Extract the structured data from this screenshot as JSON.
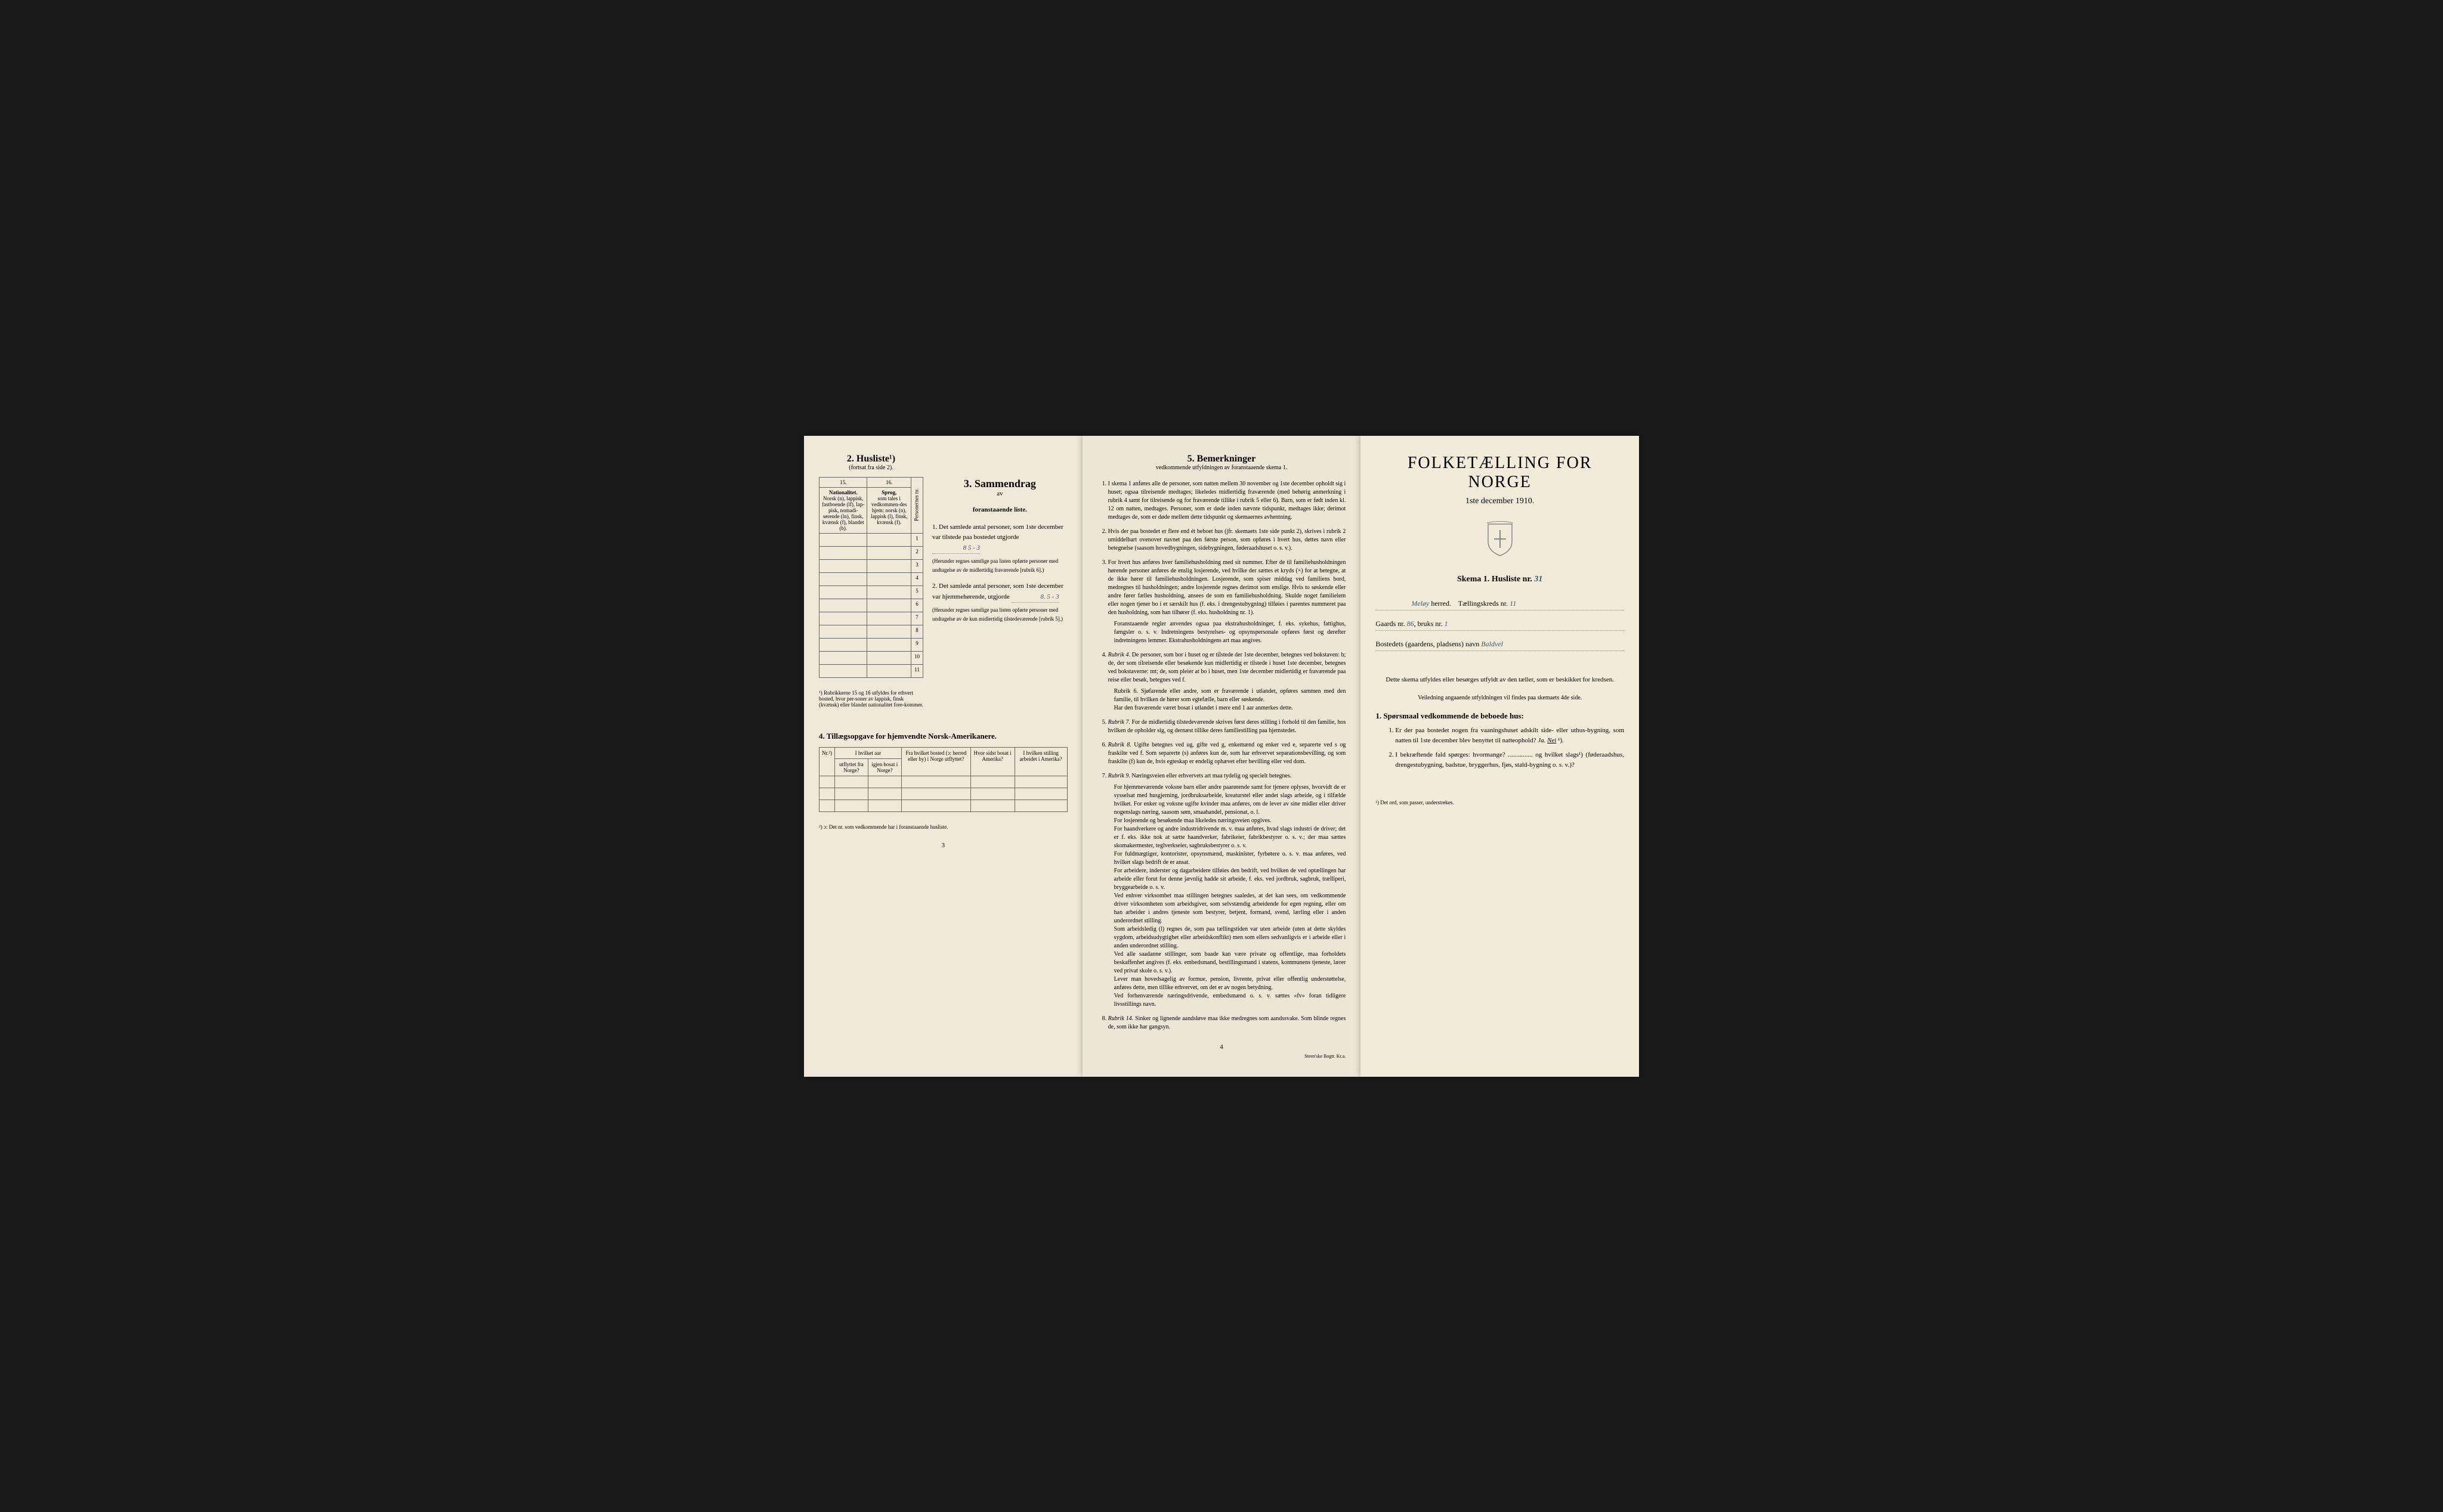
{
  "colors": {
    "page_bg": "#f0e8d8",
    "page_bg_middle": "#ede5d5",
    "page_bg_right": "#f2ebd9",
    "container_bg": "#1a1a1a",
    "handwritten": "#3a5a7a",
    "border": "#666666"
  },
  "left_page": {
    "section2": {
      "title": "2. Husliste¹)",
      "subtitle": "(fortsat fra side 2).",
      "col15": "15.",
      "col16": "16.",
      "col15_header": "Nationalitet.",
      "col15_body": "Norsk (n), lappisk, fastboende (lf), lap-pisk, nomadi-serende (ln), finsk, kvænsk (f), blandet (b).",
      "col16_header": "Sprog,",
      "col16_body": "som tales i vedkommen-des hjem: norsk (n), lappisk (l), finsk, kvænsk (f).",
      "col_persons": "Personernes nr.",
      "row_count": 11,
      "footnote": "¹) Rubrikkerne 15 og 16 utfyldes for ethvert bosted, hvor per-soner av lappisk, finsk (kvænsk) eller blandet nationalitet fore-kommer."
    },
    "section3": {
      "title": "3. Sammendrag",
      "subtitle_av": "av",
      "subtitle": "foranstaaende liste.",
      "item1_label": "1. Det samlede antal personer, som 1ste december",
      "item1_line1": "var tilstede paa bostedet utgjorde",
      "item1_value": "8   5 - 3",
      "item1_note": "(Herunder regnes samtlige paa listen opførte personer med undtagelse av de midlertidig fraværende [rubrik 6].)",
      "item2_label": "2. Det samlede antal personer, som 1ste december",
      "item2_line1": "var hjemmehørende, utgjorde",
      "item2_value": "8.  5 - 3",
      "item2_note": "(Herunder regnes samtlige paa listen opførte personer med undtagelse av de kun midlertidig tilstedeværende [rubrik 5].)"
    },
    "section4": {
      "title": "4. Tillægsopgave for hjemvendte Norsk-Amerikanere.",
      "col1": "Nr.²)",
      "col2_top": "I hvilket aar",
      "col2a": "utflyttet fra Norge?",
      "col2b": "igjen bosat i Norge?",
      "col3": "Fra hvilket bosted (ɔ: herred eller by) i Norge utflyttet?",
      "col4": "Hvor sidst bosat i Amerika?",
      "col5": "I hvilken stilling arbeidet i Amerika?",
      "row_count": 3,
      "footnote": "²) ɔ: Det nr. som vedkommende har i foranstaaende husliste."
    },
    "page_number": "3"
  },
  "middle_page": {
    "section5": {
      "title": "5. Bemerkninger",
      "subtitle": "vedkommende utfyldningen av foranstaaende skema 1.",
      "remarks": [
        {
          "text": "I skema 1 anføres alle de personer, som natten mellem 30 november og 1ste december opholdt sig i huset; ogsaa tilreisende medtages; likeledes midlertidig fraværende (med behørig anmerkning i rubrik 4 samt for tilreisende og for fraværende tillike i rubrik 5 eller 6). Barn, som er født inden kl. 12 om natten, medtages. Personer, som er døde inden nævnte tidspunkt, medtages ikke; derimot medtages de, som er døde mellem dette tidspunkt og skemaernes avhentning."
        },
        {
          "text": "Hvis der paa bostedet er flere end ét beboet hus (jfr. skemaets 1ste side punkt 2), skrives i rubrik 2 umiddelbart ovenover navnet paa den første person, som opføres i hvert hus, dettes navn eller betegnelse (saasom hovedbygningen, sidebygningen, føderaadshuset o. s. v.)."
        },
        {
          "text": "For hvert hus anføres hver familiehusholdning med sit nummer. Efter de til familiehusholdningen hørende personer anføres de enslig losjerende, ved hvilke der sættes et kryds (×) for at betegne, at de ikke hører til familiehusholdningen. Losjerende, som spiser middag ved familiens bord, medregnes til husholdningen; andre losjerende regnes derimot som enslige. Hvis to søskende eller andre fører fælles husholdning, ansees de som en familiehusholdning. Skulde noget familielem eller nogen tjener bo i et særskilt hus (f. eks. i drengestubygning) tilføies i parentes nummeret paa den husholdning, som han tilhører (f. eks. husholdning nr. 1).",
          "sub": "Foranstaaende regler anvendes ogsaa paa ekstrahusholdninger, f. eks. sykehus, fattighus, fængsler o. s. v. Indretningens bestyrelses- og opsynspersonale opføres først og derefter indretningens lemmer. Ekstrahusholdningens art maa angives."
        },
        {
          "label": "Rubrik 4.",
          "text": "De personer, som bor i huset og er tilstede der 1ste december, betegnes ved bokstaven: b; de, der som tilreisende eller besøkende kun midlertidig er tilstede i huset 1ste december, betegnes ved bokstaverne: mt; de, som pleier at bo i huset, men 1ste december midlertidig er fraværende paa reise eller besøk, betegnes ved f.",
          "sub": "Rubrik 6. Sjøfarende eller andre, som er fraværende i utlandet, opføres sammen med den familie, til hvilken de hører som egtefælle, barn eller søskende.\nHar den fraværende været bosat i utlandet i mere end 1 aar anmerkes dette."
        },
        {
          "label": "Rubrik 7.",
          "text": "For de midlertidig tilstedeværende skrives først deres stilling i forhold til den familie, hos hvilken de opholder sig, og dernæst tillike deres familiestilling paa hjemstedet."
        },
        {
          "label": "Rubrik 8.",
          "text": "Ugifte betegnes ved ug, gifte ved g, enkemænd og enker ved e, separerte ved s og fraskilte ved f. Som separerte (s) anføres kun de, som har erhvervet separationsbevilling, og som fraskilte (f) kun de, hvis egteskap er endelig ophævet efter bevilling eller ved dom."
        },
        {
          "label": "Rubrik 9.",
          "text": "Næringsveien eller erhvervets art maa tydelig og specielt betegnes.",
          "sub": "For hjemmeværende voksne barn eller andre paarørende samt for tjenere oplyses, hvorvidt de er sysselsat med husgjerning, jordbruksarbeide, kreaturstel eller andet slags arbeide, og i tilfælde hvilket. For enker og voksne ugifte kvinder maa anføres, om de lever av sine midler eller driver nogenslags næring, saasom søm, smaahandel, pensionat, o. l.\nFor losjerende og besøkende maa likeledes næringsveien opgives.\nFor haandverkere og andre industridrivende m. v. maa anføres, hvad slags industri de driver; det er f. eks. ikke nok at sætte haandverker, fabrikeier, fabrikbestyrer o. s. v.; der maa sættes skomakermester, teglverkseier, sagbruksbestyrer o. s. v.\nFor fuldmægtiger, kontorister, opsynsmænd, maskinister, fyrbøtere o. s. v. maa anføres, ved hvilket slags bedrift de er ansat.\nFor arbeidere, inderster og dagarbeidere tilføies den bedrift, ved hvilken de ved optællingen har arbeide eller forut for denne jævnlig hadde sit arbeide, f. eks. ved jordbruk, sagbruk, trælliperi, bryggearbeide o. s. v.\nVed enhver virksomhet maa stillingen betegnes saaledes, at det kan sees, om vedkommende driver virksomheten som arbeidsgiver, som selvstændig arbeidende for egen regning, eller om han arbeider i andres tjeneste som bestyrer, betjent, formand, svend, lærling eller i anden underordnet stilling.\nSom arbeidsledig (l) regnes de, som paa tællingstiden var uten arbeide (uten at dette skyldes sygdom, arbeidsudygtighet eller arbeidskonflikt) men som ellers sedvanligvis er i arbeide eller i anden underordnet stilling.\nVed alle saadanne stillinger, som baade kan være private og offentlige, maa forholdets beskaffenhet angives (f. eks. embedsmand, bestillingsmand i statens, kommunens tjeneste, lærer ved privat skole o. s. v.).\nLever man hovedsagelig av formue, pension, livrente, privat eller offentlig understøttelse, anføres dette, men tillike erhvervet, om det er av nogen betydning.\nVed forhenværende næringsdrivende, embedsmænd o. s. v. sættes «fv» foran tidligere livsstillings navn."
        },
        {
          "label": "Rubrik 14.",
          "text": "Sinker og lignende aandsløve maa ikke medregnes som aandssvake. Som blinde regnes de, som ikke har gangsyn."
        }
      ]
    },
    "page_number": "4",
    "printer": "Steen'ske Bogtr. Kr.a."
  },
  "right_page": {
    "main_title": "FOLKETÆLLING FOR NORGE",
    "subtitle": "1ste december 1910.",
    "schema_label": "Skema 1.  Husliste nr.",
    "schema_value": "31",
    "herred_label": "herred.",
    "herred_value": "Meløy",
    "kreds_label": "Tællingskreds nr.",
    "kreds_value": "11",
    "gaards_label": "Gaards nr.",
    "gaards_value": "86",
    "bruks_label": "bruks nr.",
    "bruks_value": "1",
    "bosted_label": "Bostedets (gaardens, pladsens) navn",
    "bosted_value": "Baldvel",
    "instruction1": "Dette skema utfyldes eller besørges utfyldt av den tæller, som er beskikket for kredsen.",
    "instruction2": "Veiledning angaaende utfyldningen vil findes paa skemaets 4de side.",
    "section1_heading": "1. Spørsmaal vedkommende de beboede hus:",
    "q1": "Er der paa bostedet nogen fra vaaningshuset adskilt side- eller uthus-bygning, som natten til 1ste december blev benyttet til natteophold?",
    "q1_ja": "Ja.",
    "q1_nei": "Nei",
    "q1_suffix": "¹).",
    "q2": "I bekræftende fald spørges: hvormange?",
    "q2_suffix": "og hvilket slags¹) (føderaadshus, drengestubygning, badstue, bryggerhus, fjøs, stald-bygning o. s. v.)?",
    "footnote": "¹) Det ord, som passer, understrekes."
  }
}
